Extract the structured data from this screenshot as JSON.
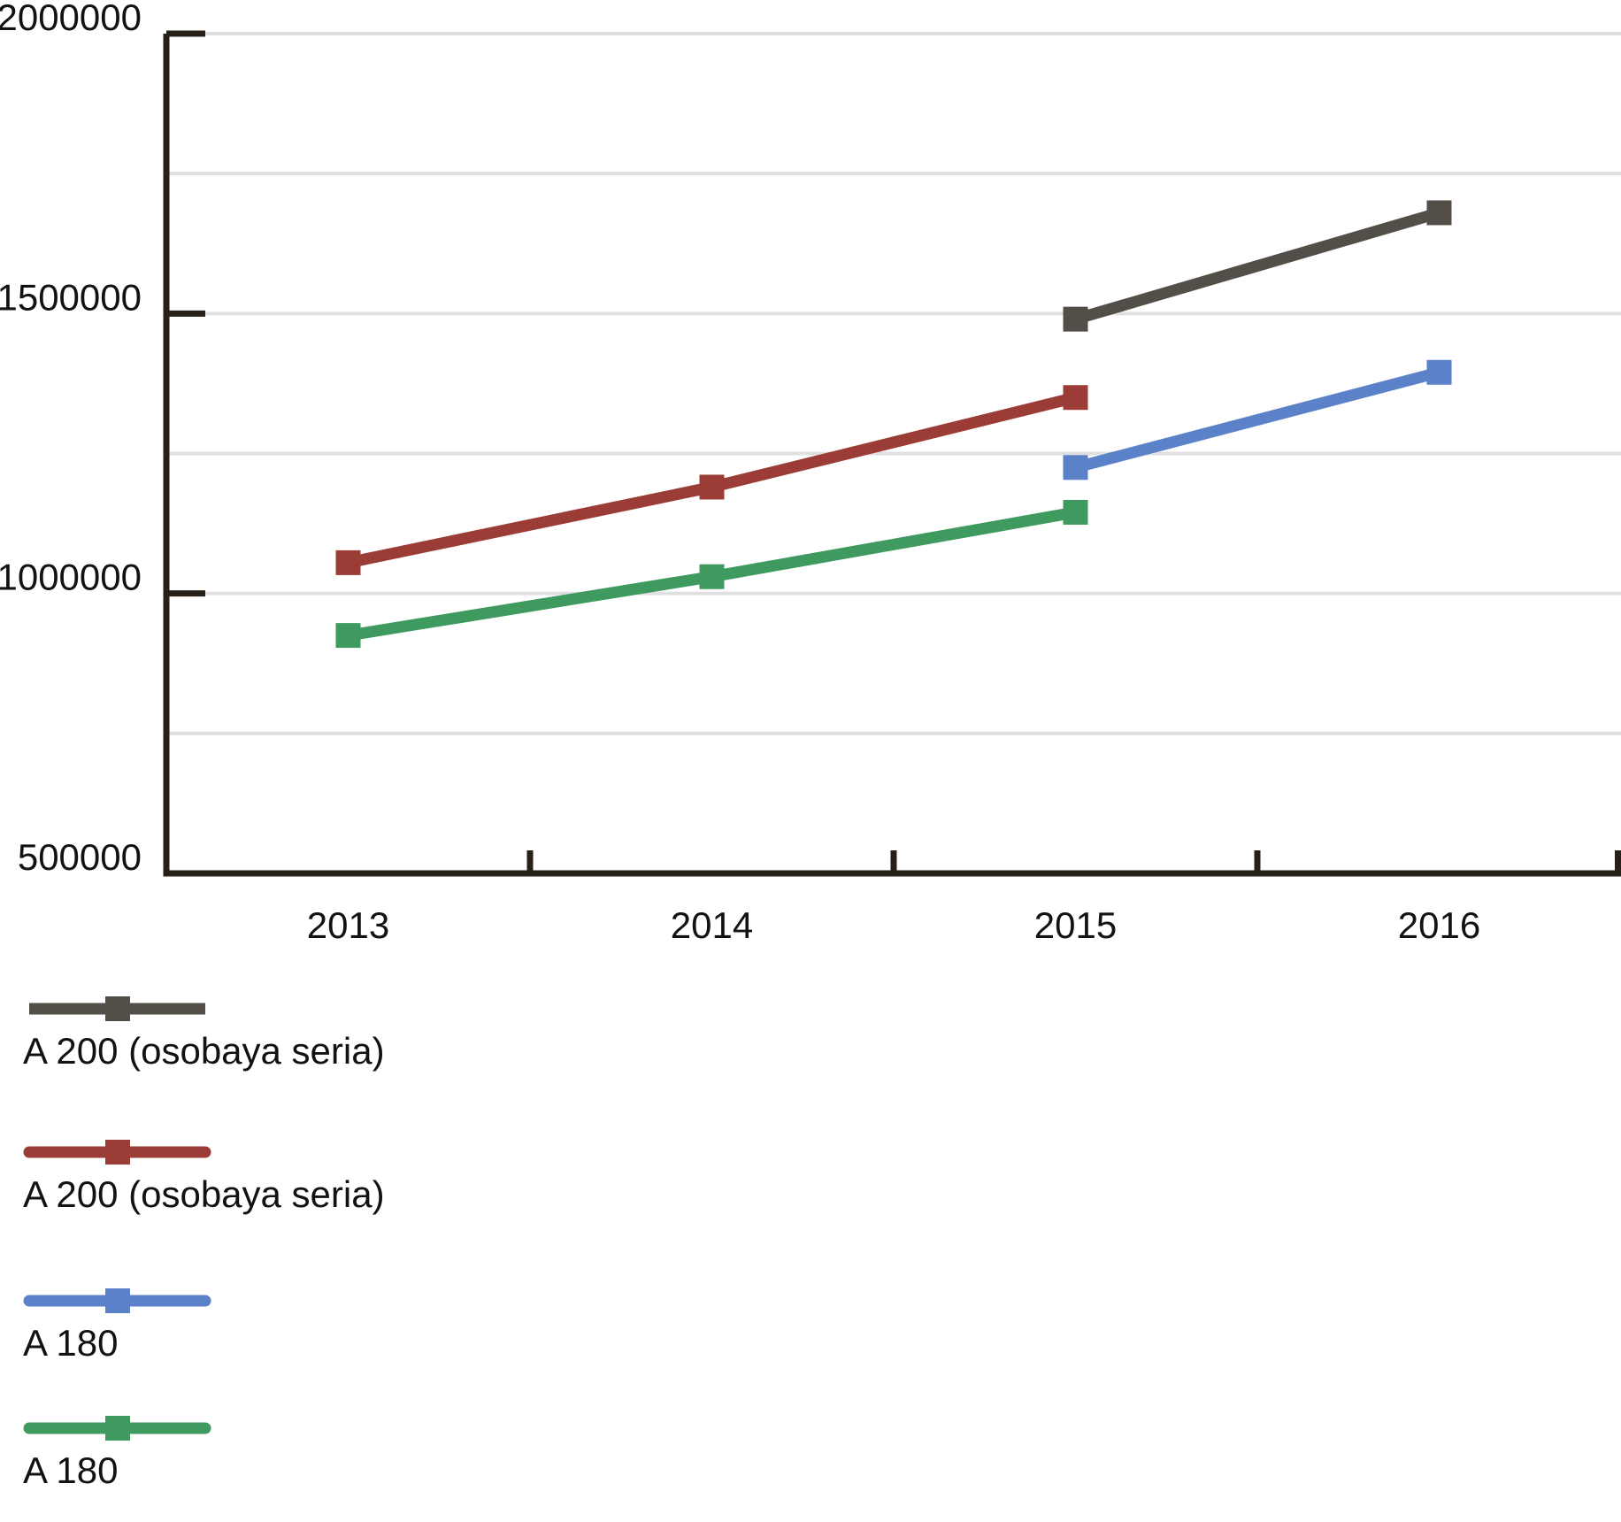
{
  "chart_data": {
    "type": "line",
    "categories": [
      "2013",
      "2014",
      "2015",
      "2016"
    ],
    "series": [
      {
        "name": "A 200 (osobaya seria)",
        "color": "#544e48",
        "marker": "square",
        "values": [
          null,
          null,
          1490000,
          1680000
        ]
      },
      {
        "name": "A 200 (osobaya seria)",
        "color": "#9c3c36",
        "marker": "square",
        "values": [
          1055000,
          1190000,
          1350000,
          null
        ]
      },
      {
        "name": "A 180",
        "color": "#5b82c8",
        "marker": "square",
        "values": [
          null,
          null,
          1225000,
          1395000
        ]
      },
      {
        "name": "A 180",
        "color": "#3e9a5f",
        "marker": "square",
        "values": [
          925000,
          1030000,
          1145000,
          null
        ]
      }
    ],
    "title": "",
    "xlabel": "",
    "ylabel": "",
    "ylim": [
      500000,
      2000000
    ],
    "yticks": [
      {
        "value": 2000000,
        "label": "2000000"
      },
      {
        "value": 1500000,
        "label": "1500000"
      },
      {
        "value": 1000000,
        "label": "1000000"
      },
      {
        "value": 500000,
        "label": "500000"
      }
    ],
    "grid": true,
    "grid_interval": 250000,
    "legend_position": "bottom-left",
    "axis_color": "#262019",
    "grid_color": "#e0e0e0",
    "text_color": "#14110e",
    "background": "#ffffff"
  }
}
